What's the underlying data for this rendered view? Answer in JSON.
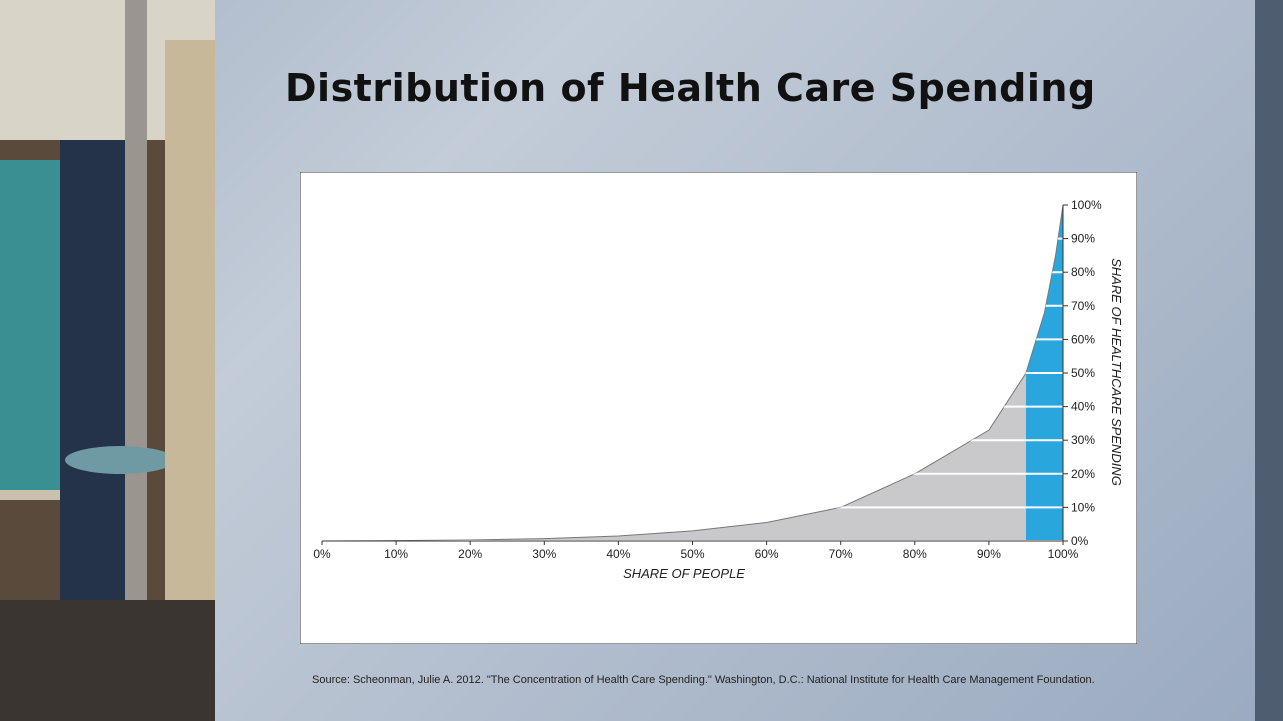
{
  "chart_data": {
    "type": "area",
    "title": "Distribution of Health Care Spending",
    "source": "Source: Scheonman, Julie A. 2012. \"The Concentration of Health Care Spending.\" Washington, D.C.: National Institute for Health Care Management Foundation.",
    "x_label": "SHARE OF PEOPLE",
    "y_label": "SHARE OF HEALTHCARE SPENDING",
    "x": [
      0,
      10,
      20,
      30,
      40,
      50,
      60,
      70,
      80,
      90,
      95,
      97.5,
      99,
      100
    ],
    "values": [
      0,
      0.1,
      0.3,
      0.7,
      1.5,
      3,
      5.5,
      10,
      20,
      33,
      50,
      68,
      85,
      100
    ],
    "color": "#c9c9cb",
    "highlight_color": "#2aa6df",
    "highlight_from": 95,
    "xlim": [
      0,
      100
    ],
    "ylim": [
      0,
      100
    ],
    "xticks": [
      {
        "value": 0,
        "label": "0%"
      },
      {
        "value": 10,
        "label": "10%"
      },
      {
        "value": 20,
        "label": "20%"
      },
      {
        "value": 30,
        "label": "30%"
      },
      {
        "value": 40,
        "label": "40%"
      },
      {
        "value": 50,
        "label": "50%"
      },
      {
        "value": 60,
        "label": "60%"
      },
      {
        "value": 70,
        "label": "70%"
      },
      {
        "value": 80,
        "label": "80%"
      },
      {
        "value": 90,
        "label": "90%"
      },
      {
        "value": 100,
        "label": "100%"
      }
    ],
    "yticks": [
      {
        "value": 0,
        "label": "0%"
      },
      {
        "value": 10,
        "label": "10%"
      },
      {
        "value": 20,
        "label": "20%"
      },
      {
        "value": 30,
        "label": "30%"
      },
      {
        "value": 40,
        "label": "40%"
      },
      {
        "value": 50,
        "label": "50%"
      },
      {
        "value": 60,
        "label": "60%"
      },
      {
        "value": 70,
        "label": "70%"
      },
      {
        "value": 80,
        "label": "80%"
      },
      {
        "value": 90,
        "label": "90%"
      },
      {
        "value": 100,
        "label": "100%"
      }
    ]
  }
}
